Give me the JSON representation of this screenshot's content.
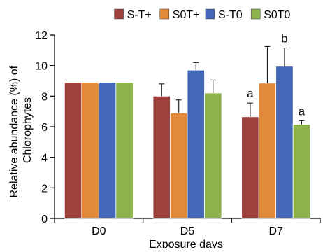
{
  "chart_data": {
    "type": "bar",
    "categories": [
      "D0",
      "D5",
      "D7"
    ],
    "series": [
      {
        "name": "S-T+",
        "color": "#9e403b",
        "values": [
          8.9,
          8.0,
          6.65
        ],
        "errors": [
          0,
          0.8,
          0.9
        ]
      },
      {
        "name": "S0T+",
        "color": "#e3893a",
        "values": [
          8.9,
          6.9,
          8.85
        ],
        "errors": [
          0,
          0.85,
          2.4
        ]
      },
      {
        "name": "S-T0",
        "color": "#4468b7",
        "values": [
          8.9,
          9.7,
          9.95
        ],
        "errors": [
          0,
          0.5,
          1.2
        ]
      },
      {
        "name": "S0T0",
        "color": "#8db24c",
        "values": [
          8.9,
          8.2,
          6.15
        ],
        "errors": [
          0,
          0.85,
          0.25
        ]
      }
    ],
    "annotations": [
      {
        "text": "a",
        "series": 0,
        "category": 2
      },
      {
        "text": "b",
        "series": 2,
        "category": 2
      },
      {
        "text": "a",
        "series": 3,
        "category": 2
      }
    ],
    "xlabel": "Exposure days",
    "ylabel": [
      "Relative abundance (%) of",
      "Chlorophytes"
    ],
    "ylim": [
      0,
      12
    ],
    "yticks": [
      0,
      2,
      4,
      6,
      8,
      10,
      12
    ],
    "grid": false,
    "legend": "top"
  }
}
